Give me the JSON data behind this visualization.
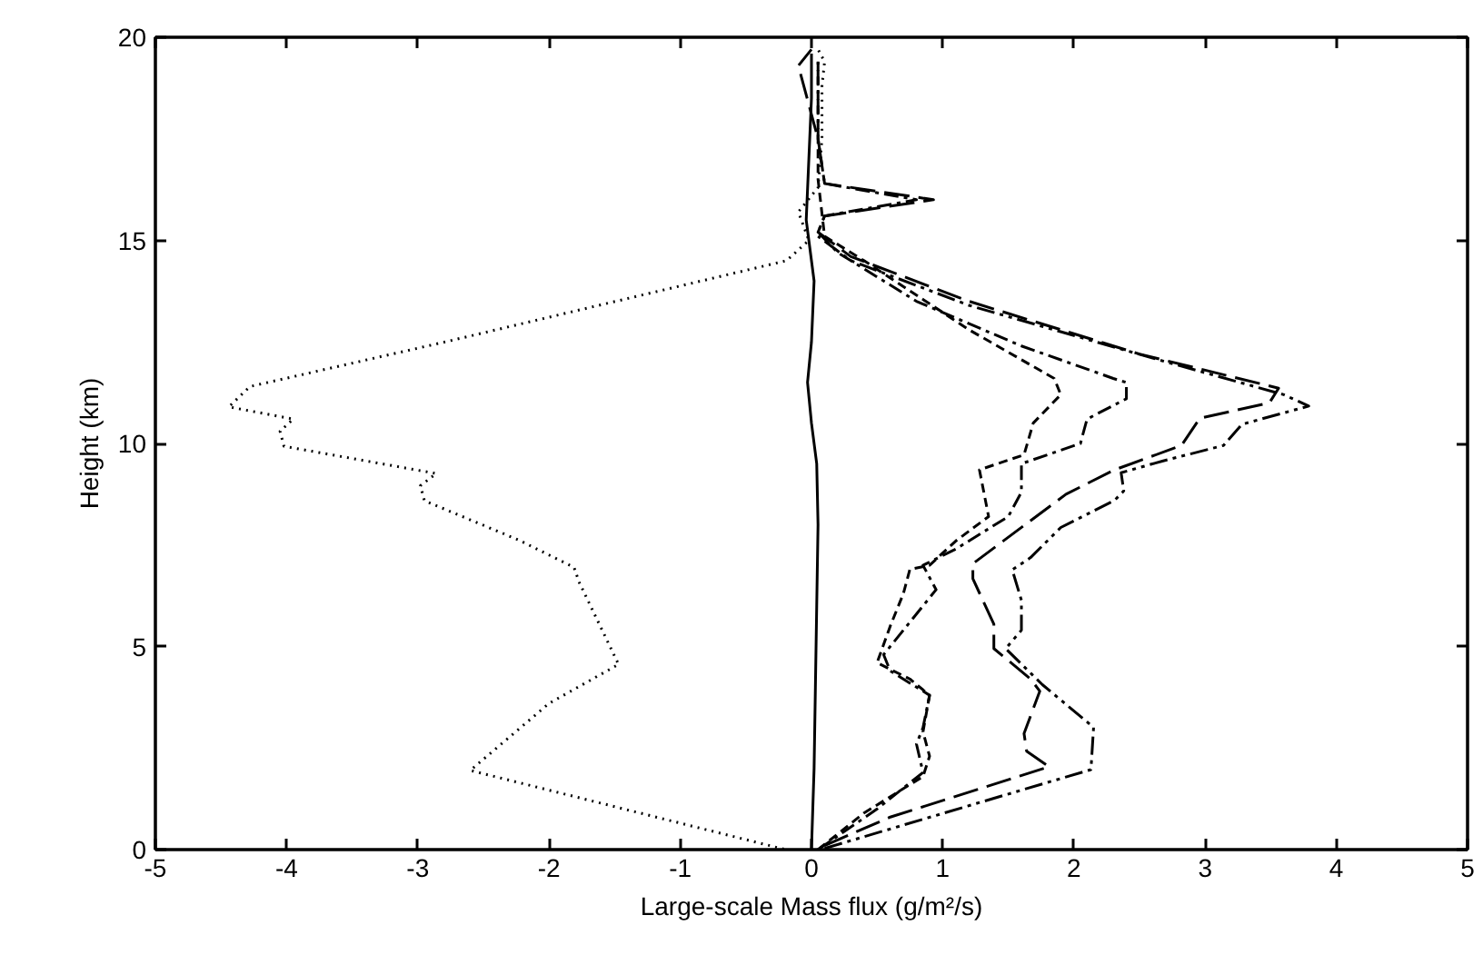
{
  "chart_data": {
    "type": "line",
    "xlabel": "Large-scale Mass flux (g/m²/s)",
    "ylabel": "Height (km)",
    "xlim": [
      -5,
      5
    ],
    "ylim": [
      0,
      20
    ],
    "xticks": [
      -5,
      -4,
      -3,
      -2,
      -1,
      0,
      1,
      2,
      3,
      4,
      5
    ],
    "yticks": [
      0,
      5,
      10,
      15,
      20
    ],
    "series": [
      {
        "color": "#000000",
        "line_style": "solid",
        "x": [
          0,
          0.02,
          0.03,
          0.04,
          0.05,
          0.04,
          0.0,
          -0.03,
          0.0,
          0.02,
          -0.04,
          -0.02,
          0.0,
          0.0
        ],
        "values": [
          0,
          2,
          4,
          6,
          8,
          9.5,
          10.5,
          11.5,
          12.5,
          14,
          15.5,
          17,
          18.5,
          19.6
        ]
      },
      {
        "color": "#000000",
        "line_style": "dotted",
        "x": [
          -0.21,
          -2.6,
          -2.0,
          -1.47,
          -1.77,
          -1.81,
          -2.23,
          -2.95,
          -2.98,
          -2.86,
          -4.02,
          -4.05,
          -3.95,
          -4.44,
          -4.28,
          -2.79,
          -0.19,
          -0.02,
          -0.1,
          0.05,
          0.08,
          0.08,
          0.1,
          0.05
        ],
        "values": [
          0.01,
          1.95,
          3.6,
          4.56,
          6.58,
          6.95,
          7.62,
          8.59,
          8.96,
          9.26,
          9.93,
          10.3,
          10.6,
          10.9,
          11.4,
          12.5,
          14.5,
          15.0,
          15.7,
          16.3,
          17.5,
          18.8,
          19.4,
          19.7
        ]
      },
      {
        "color": "#000000",
        "line_style": "dashed",
        "x": [
          0.05,
          0.4,
          0.85,
          0.9,
          0.85,
          0.9,
          0.75,
          0.5,
          0.6,
          0.7,
          0.75,
          0.9,
          1.1,
          1.35,
          1.28,
          1.62,
          1.69,
          1.9,
          1.85,
          1.2,
          0.4,
          0.1,
          0.05,
          0.05,
          0.05
        ],
        "values": [
          0,
          0.9,
          1.8,
          2.3,
          2.9,
          3.8,
          4.2,
          4.6,
          5.5,
          6.3,
          6.9,
          7.0,
          7.6,
          8.2,
          9.35,
          9.72,
          10.5,
          11.2,
          11.6,
          12.8,
          14.5,
          15.1,
          16.5,
          18.5,
          19.5
        ]
      },
      {
        "color": "#000000",
        "line_style": "dashdot",
        "x": [
          0.05,
          0.5,
          0.85,
          0.8,
          0.85,
          0.9,
          0.6,
          0.55,
          0.75,
          0.95,
          0.85,
          1.1,
          1.5,
          1.6,
          1.6,
          2.05,
          2.1,
          2.4,
          2.4,
          2.3,
          1.6,
          0.8,
          0.2,
          0.05,
          0.1,
          0.8,
          0.1,
          0.05,
          0.05
        ],
        "values": [
          0,
          1.0,
          1.9,
          2.6,
          3.0,
          3.8,
          4.4,
          4.8,
          5.6,
          6.4,
          7.0,
          7.4,
          8.2,
          8.8,
          9.5,
          10.0,
          10.6,
          11.1,
          11.5,
          11.6,
          12.4,
          13.5,
          14.7,
          15.2,
          15.6,
          16.0,
          16.4,
          17.5,
          19.4
        ]
      },
      {
        "color": "#000000",
        "line_style": "longdash",
        "x": [
          0.1,
          0.6,
          1.81,
          1.64,
          1.62,
          1.74,
          1.67,
          1.39,
          1.39,
          1.23,
          1.23,
          1.94,
          2.31,
          2.82,
          2.96,
          3.49,
          3.56,
          2.5,
          1.2,
          0.3,
          0.05,
          0.1,
          0.93,
          0.1,
          0.05,
          -0.1,
          0.0
        ],
        "values": [
          0.1,
          0.8,
          2.04,
          2.42,
          2.86,
          3.9,
          4.2,
          4.95,
          5.55,
          6.67,
          7.04,
          8.75,
          9.35,
          9.95,
          10.62,
          11.0,
          11.36,
          12.2,
          13.5,
          14.6,
          15.2,
          15.6,
          16.0,
          16.4,
          17.5,
          19.3,
          19.7
        ]
      },
      {
        "color": "#000000",
        "line_style": "dashdotdot",
        "x": [
          0.1,
          2.13,
          2.15,
          1.76,
          1.48,
          1.6,
          1.6,
          1.53,
          1.67,
          1.9,
          2.31,
          2.38,
          2.36,
          2.68,
          3.14,
          3.28,
          3.79,
          3.6,
          2.6,
          1.2,
          0.3,
          0.05
        ],
        "values": [
          0.03,
          1.97,
          3.01,
          4.06,
          4.95,
          5.4,
          6.14,
          6.89,
          7.19,
          7.93,
          8.6,
          8.83,
          9.28,
          9.57,
          9.95,
          10.47,
          10.92,
          11.2,
          12.1,
          13.4,
          14.5,
          15.1
        ]
      }
    ]
  }
}
